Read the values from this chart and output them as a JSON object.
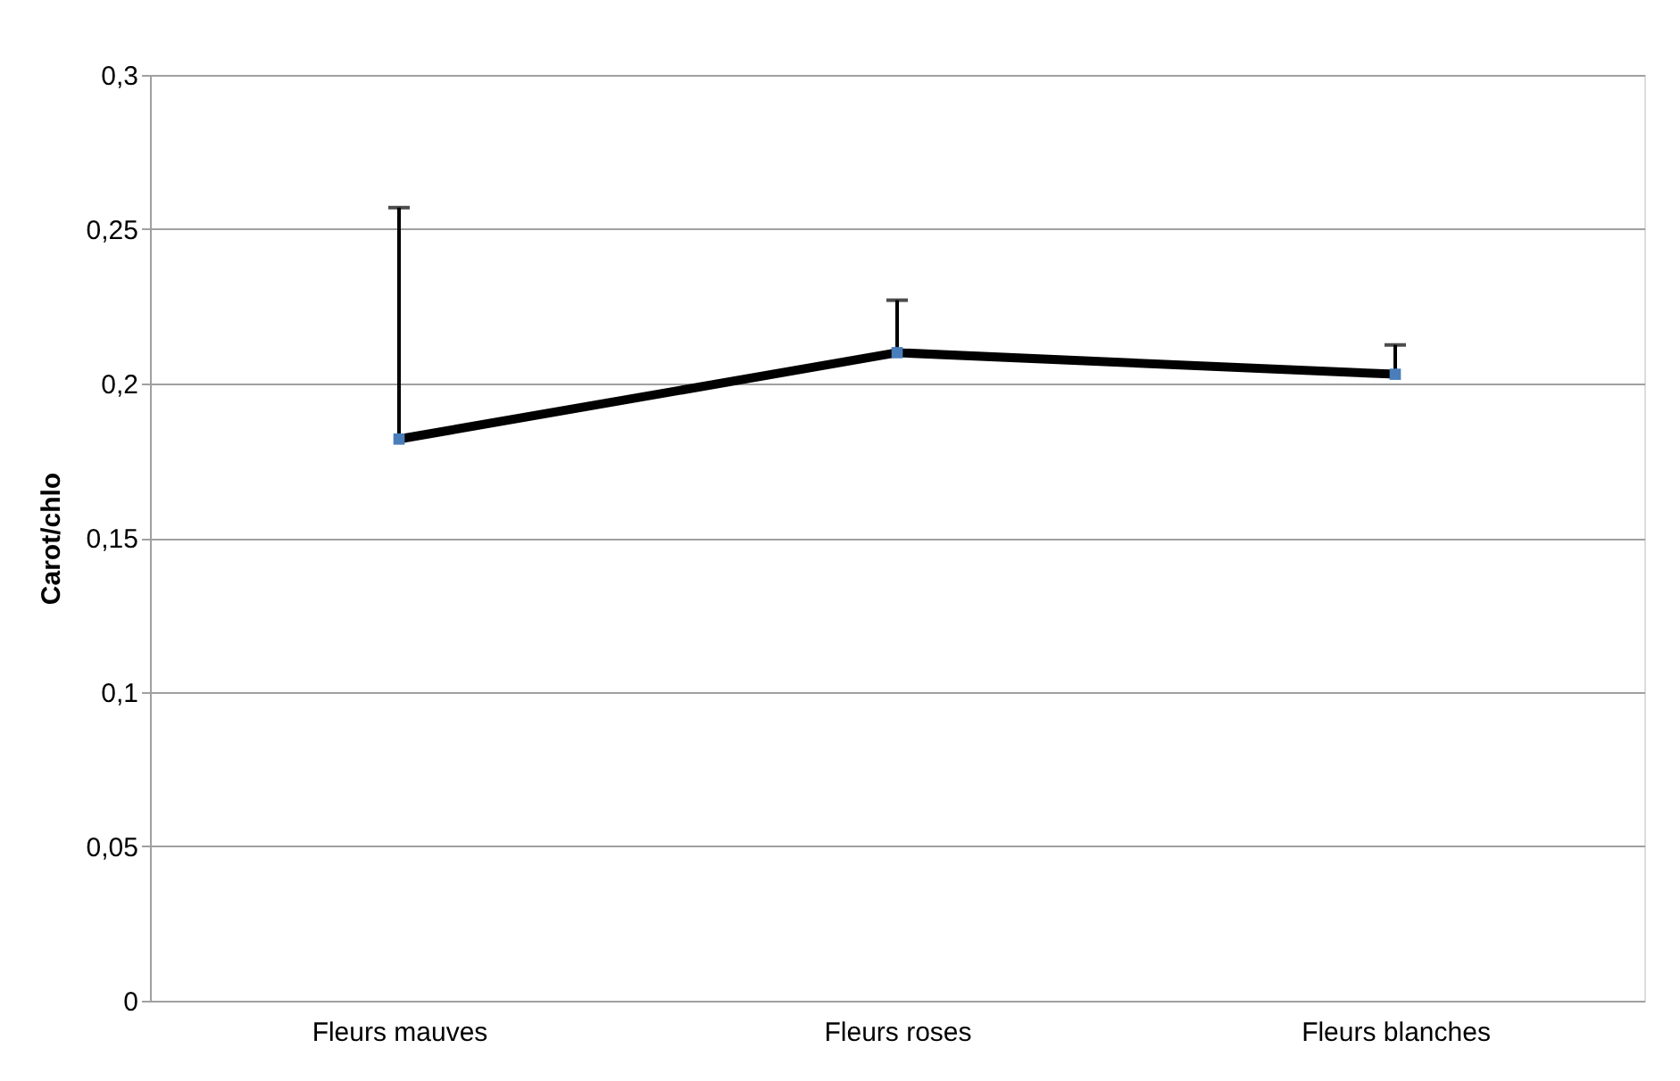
{
  "chart_data": {
    "type": "line",
    "ylabel": "Carot/chlo",
    "categories": [
      "Fleurs mauves",
      "Fleurs roses",
      "Fleurs blanches"
    ],
    "series": [
      {
        "color": "#000000",
        "values": [
          0.182,
          0.21,
          0.203
        ],
        "errors": [
          [
            0.182,
            0.257
          ],
          [
            0.21,
            0.227
          ],
          [
            0.203,
            0.2125
          ]
        ]
      }
    ],
    "marker": "square",
    "ylim": [
      0,
      0.3
    ],
    "yticks": [
      {
        "value": 0,
        "label": "0"
      },
      {
        "value": 0.05,
        "label": "0,05"
      },
      {
        "value": 0.1,
        "label": "0,1"
      },
      {
        "value": 0.15,
        "label": "0,15"
      },
      {
        "value": 0.2,
        "label": "0,2"
      },
      {
        "value": 0.25,
        "label": "0,25"
      },
      {
        "value": 0.3,
        "label": "0,3"
      }
    ],
    "grid": "y"
  }
}
